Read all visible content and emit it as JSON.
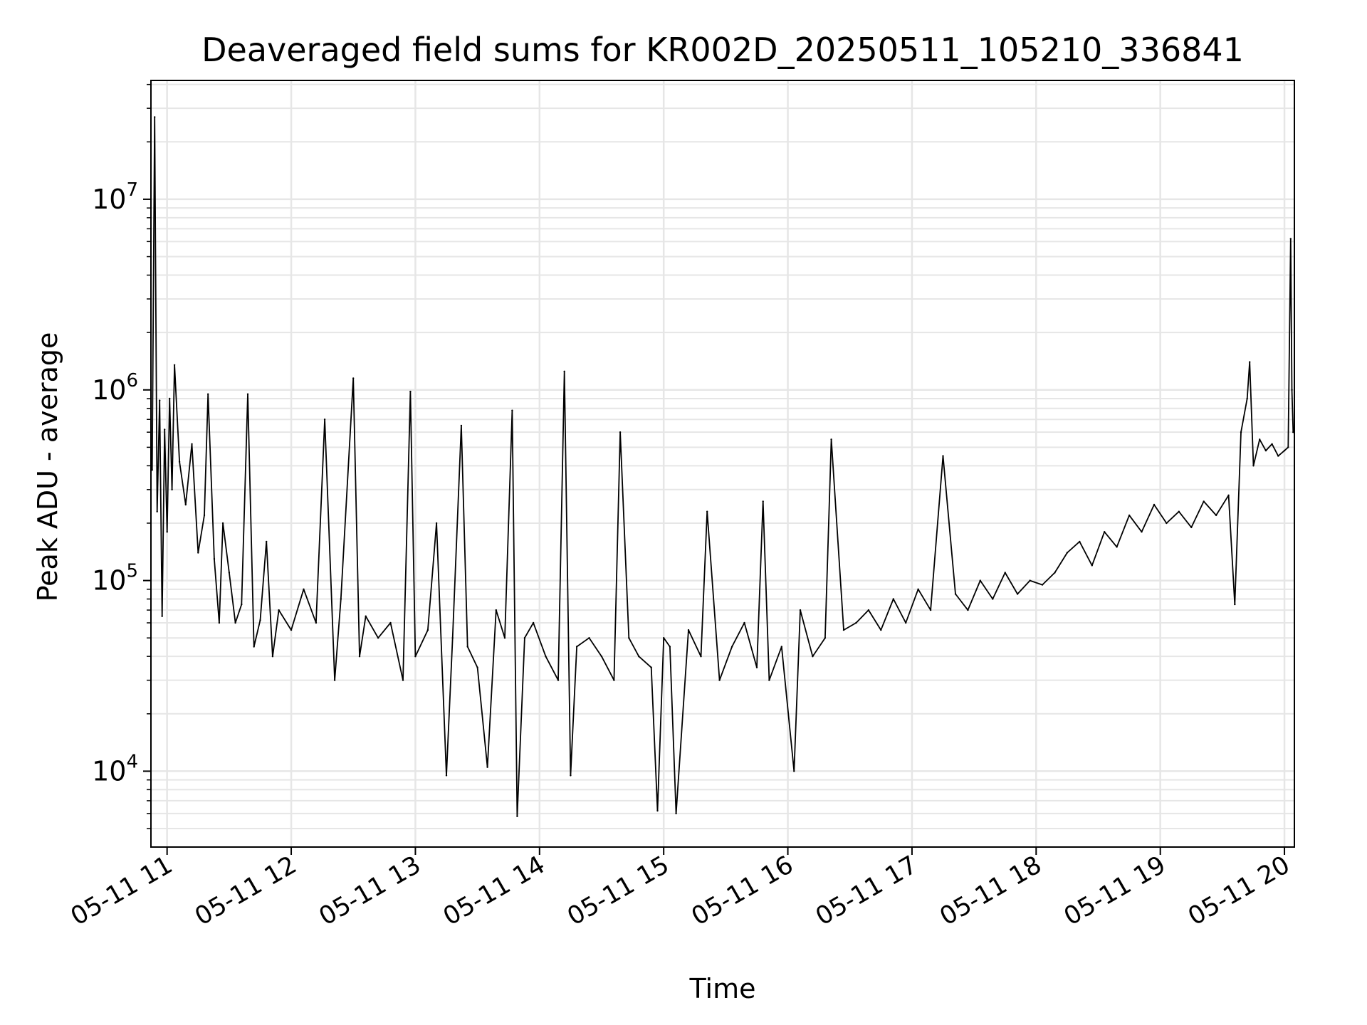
{
  "chart_data": {
    "type": "line",
    "title": "Deaveraged field sums for KR002D_20250511_105210_336841",
    "xlabel": "Time",
    "ylabel": "Peak ADU - average",
    "yscale": "log",
    "x_tick_labels": [
      "05-11 11",
      "05-11 12",
      "05-11 13",
      "05-11 14",
      "05-11 15",
      "05-11 16",
      "05-11 17",
      "05-11 18",
      "05-11 19",
      "05-11 20"
    ],
    "x_tick_hours": [
      11,
      12,
      13,
      14,
      15,
      16,
      17,
      18,
      19,
      20
    ],
    "xlim_hours": [
      10.87,
      20.08
    ],
    "y_tick_labels": [
      {
        "base": "10",
        "exp": "4"
      },
      {
        "base": "10",
        "exp": "5"
      },
      {
        "base": "10",
        "exp": "6"
      },
      {
        "base": "10",
        "exp": "7"
      }
    ],
    "y_tick_values": [
      10000,
      100000,
      1000000,
      10000000
    ],
    "ylim": [
      4000,
      42000000
    ],
    "grid": true,
    "line_color": "#000000",
    "series": [
      {
        "points": [
          [
            10.88,
            380000
          ],
          [
            10.9,
            27000000
          ],
          [
            10.92,
            230000
          ],
          [
            10.94,
            880000
          ],
          [
            10.96,
            65000
          ],
          [
            10.98,
            620000
          ],
          [
            11.0,
            180000
          ],
          [
            11.02,
            900000
          ],
          [
            11.04,
            300000
          ],
          [
            11.06,
            1350000
          ],
          [
            11.1,
            420000
          ],
          [
            11.15,
            250000
          ],
          [
            11.2,
            520000
          ],
          [
            11.25,
            140000
          ],
          [
            11.3,
            220000
          ],
          [
            11.33,
            950000
          ],
          [
            11.38,
            130000
          ],
          [
            11.42,
            60000
          ],
          [
            11.45,
            200000
          ],
          [
            11.5,
            110000
          ],
          [
            11.55,
            60000
          ],
          [
            11.6,
            75000
          ],
          [
            11.65,
            950000
          ],
          [
            11.7,
            45000
          ],
          [
            11.75,
            62000
          ],
          [
            11.8,
            160000
          ],
          [
            11.85,
            40000
          ],
          [
            11.9,
            70000
          ],
          [
            12.0,
            55000
          ],
          [
            12.1,
            90000
          ],
          [
            12.2,
            60000
          ],
          [
            12.27,
            700000
          ],
          [
            12.35,
            30000
          ],
          [
            12.4,
            80000
          ],
          [
            12.5,
            1150000
          ],
          [
            12.55,
            40000
          ],
          [
            12.6,
            65000
          ],
          [
            12.7,
            50000
          ],
          [
            12.8,
            60000
          ],
          [
            12.9,
            30000
          ],
          [
            12.96,
            980000
          ],
          [
            13.0,
            40000
          ],
          [
            13.1,
            55000
          ],
          [
            13.17,
            200000
          ],
          [
            13.25,
            9500
          ],
          [
            13.3,
            50000
          ],
          [
            13.37,
            650000
          ],
          [
            13.42,
            45000
          ],
          [
            13.5,
            35000
          ],
          [
            13.58,
            10500
          ],
          [
            13.65,
            70000
          ],
          [
            13.72,
            50000
          ],
          [
            13.78,
            780000
          ],
          [
            13.82,
            5800
          ],
          [
            13.88,
            50000
          ],
          [
            13.95,
            60000
          ],
          [
            14.05,
            40000
          ],
          [
            14.15,
            30000
          ],
          [
            14.2,
            1250000
          ],
          [
            14.25,
            9500
          ],
          [
            14.3,
            45000
          ],
          [
            14.4,
            50000
          ],
          [
            14.5,
            40000
          ],
          [
            14.6,
            30000
          ],
          [
            14.65,
            600000
          ],
          [
            14.72,
            50000
          ],
          [
            14.8,
            40000
          ],
          [
            14.9,
            35000
          ],
          [
            14.95,
            6200
          ],
          [
            15.0,
            50000
          ],
          [
            15.05,
            45000
          ],
          [
            15.1,
            6000
          ],
          [
            15.2,
            55000
          ],
          [
            15.3,
            40000
          ],
          [
            15.35,
            230000
          ],
          [
            15.45,
            30000
          ],
          [
            15.55,
            45000
          ],
          [
            15.65,
            60000
          ],
          [
            15.75,
            35000
          ],
          [
            15.8,
            260000
          ],
          [
            15.85,
            30000
          ],
          [
            15.95,
            45000
          ],
          [
            16.05,
            10000
          ],
          [
            16.1,
            70000
          ],
          [
            16.2,
            40000
          ],
          [
            16.3,
            50000
          ],
          [
            16.35,
            550000
          ],
          [
            16.45,
            55000
          ],
          [
            16.55,
            60000
          ],
          [
            16.65,
            70000
          ],
          [
            16.75,
            55000
          ],
          [
            16.85,
            80000
          ],
          [
            16.95,
            60000
          ],
          [
            17.05,
            90000
          ],
          [
            17.15,
            70000
          ],
          [
            17.25,
            450000
          ],
          [
            17.35,
            85000
          ],
          [
            17.45,
            70000
          ],
          [
            17.55,
            100000
          ],
          [
            17.65,
            80000
          ],
          [
            17.75,
            110000
          ],
          [
            17.85,
            85000
          ],
          [
            17.95,
            100000
          ],
          [
            18.05,
            95000
          ],
          [
            18.15,
            110000
          ],
          [
            18.25,
            140000
          ],
          [
            18.35,
            160000
          ],
          [
            18.45,
            120000
          ],
          [
            18.55,
            180000
          ],
          [
            18.65,
            150000
          ],
          [
            18.75,
            220000
          ],
          [
            18.85,
            180000
          ],
          [
            18.95,
            250000
          ],
          [
            19.05,
            200000
          ],
          [
            19.15,
            230000
          ],
          [
            19.25,
            190000
          ],
          [
            19.35,
            260000
          ],
          [
            19.45,
            220000
          ],
          [
            19.55,
            280000
          ],
          [
            19.6,
            75000
          ],
          [
            19.65,
            600000
          ],
          [
            19.7,
            900000
          ],
          [
            19.72,
            1400000
          ],
          [
            19.75,
            400000
          ],
          [
            19.8,
            550000
          ],
          [
            19.85,
            480000
          ],
          [
            19.9,
            520000
          ],
          [
            19.95,
            450000
          ],
          [
            20.0,
            480000
          ],
          [
            20.03,
            500000
          ],
          [
            20.05,
            6200000
          ],
          [
            20.06,
            1000000
          ],
          [
            20.07,
            600000
          ]
        ]
      }
    ]
  }
}
